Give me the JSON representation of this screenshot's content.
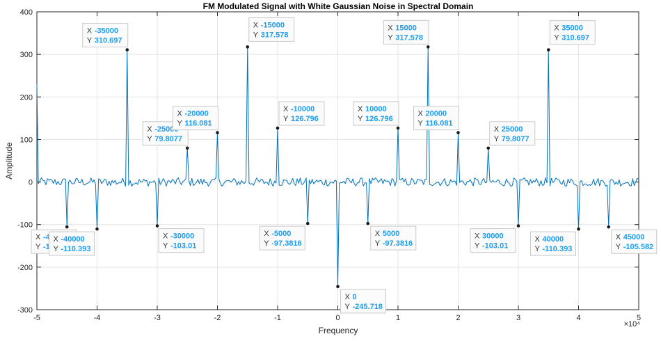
{
  "chart_data": {
    "type": "line",
    "title": "FM Modulated Signal with White Gaussian Noise in Spectral Domain",
    "xlabel": "Frequency",
    "ylabel": "Amplitude",
    "x_exponent_label": "×10⁴",
    "xlim": [
      -50000,
      50000
    ],
    "ylim": [
      -300,
      400
    ],
    "grid": true,
    "x_ticks": [
      -50000,
      -40000,
      -30000,
      -20000,
      -10000,
      0,
      10000,
      20000,
      30000,
      40000,
      50000
    ],
    "x_tick_labels": [
      "-5",
      "-4",
      "-3",
      "-2",
      "-1",
      "0",
      "1",
      "2",
      "3",
      "4",
      "5"
    ],
    "y_ticks": [
      -300,
      -200,
      -100,
      0,
      100,
      200,
      300,
      400
    ],
    "y_tick_labels": [
      "-300",
      "-200",
      "-100",
      "0",
      "100",
      "200",
      "300",
      "400"
    ],
    "series_color": "#0072bd",
    "noise_amplitude": 10,
    "edge_value": 230,
    "peaks": [
      {
        "x": -45000,
        "y": -105.582
      },
      {
        "x": -40000,
        "y": -110.393
      },
      {
        "x": -35000,
        "y": 310.697
      },
      {
        "x": -30000,
        "y": -103.01
      },
      {
        "x": -25000,
        "y": 79.8077
      },
      {
        "x": -20000,
        "y": 116.081
      },
      {
        "x": -15000,
        "y": 317.578
      },
      {
        "x": -10000,
        "y": 126.796
      },
      {
        "x": -5000,
        "y": -97.3816
      },
      {
        "x": 0,
        "y": -245.718
      },
      {
        "x": 5000,
        "y": -97.3816
      },
      {
        "x": 10000,
        "y": 126.796
      },
      {
        "x": 15000,
        "y": 317.578
      },
      {
        "x": 20000,
        "y": 116.081
      },
      {
        "x": 25000,
        "y": 79.8077
      },
      {
        "x": 30000,
        "y": -103.01
      },
      {
        "x": 35000,
        "y": 310.697
      },
      {
        "x": 40000,
        "y": -110.393
      },
      {
        "x": 45000,
        "y": -105.582
      }
    ],
    "datatips": [
      {
        "x_text": "-45000",
        "y_text": "-105.582"
      },
      {
        "x_text": "-40000",
        "y_text": "-110.393"
      },
      {
        "x_text": "-35000",
        "y_text": "310.697"
      },
      {
        "x_text": "-30000",
        "y_text": "-103.01"
      },
      {
        "x_text": "-25000",
        "y_text": "79.8077"
      },
      {
        "x_text": "-20000",
        "y_text": "116.081"
      },
      {
        "x_text": "-15000",
        "y_text": "317.578"
      },
      {
        "x_text": "-10000",
        "y_text": "126.796"
      },
      {
        "x_text": "-5000",
        "y_text": "-97.3816"
      },
      {
        "x_text": "0",
        "y_text": "-245.718"
      },
      {
        "x_text": "5000",
        "y_text": "-97.3816"
      },
      {
        "x_text": "10000",
        "y_text": "126.796"
      },
      {
        "x_text": "15000",
        "y_text": "317.578"
      },
      {
        "x_text": "20000",
        "y_text": "116.081"
      },
      {
        "x_text": "25000",
        "y_text": "79.8077"
      },
      {
        "x_text": "30000",
        "y_text": "-103.01"
      },
      {
        "x_text": "35000",
        "y_text": "310.697"
      },
      {
        "x_text": "40000",
        "y_text": "-110.393"
      },
      {
        "x_text": "45000",
        "y_text": "-105.582"
      }
    ],
    "datatip_key_x": "X",
    "datatip_key_y": "Y"
  }
}
